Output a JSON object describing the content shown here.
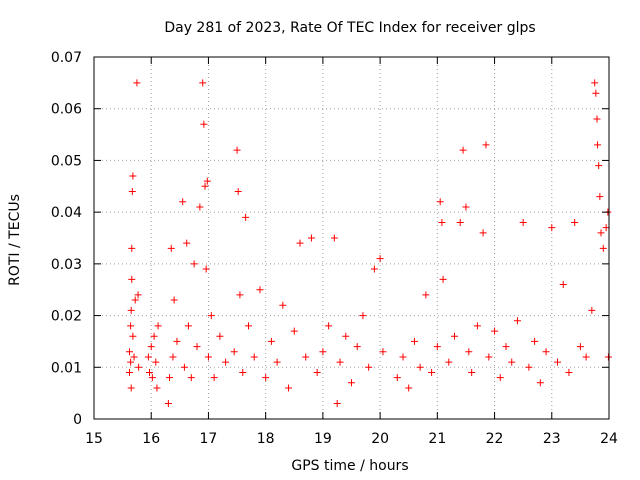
{
  "chart_data": {
    "type": "scatter",
    "title": "Day 281 of 2023, Rate Of TEC Index for receiver glps",
    "xlabel": "GPS time / hours",
    "ylabel": "ROTI / TECUs",
    "xlim": [
      15,
      24
    ],
    "ylim": [
      0,
      0.07
    ],
    "xticks": [
      15,
      16,
      17,
      18,
      19,
      20,
      21,
      22,
      23,
      24
    ],
    "xtick_labels": [
      "15",
      "16",
      "17",
      "18",
      "19",
      "20",
      "21",
      "22",
      "23",
      "24"
    ],
    "yticks": [
      0,
      0.01,
      0.02,
      0.03,
      0.04,
      0.05,
      0.06,
      0.07
    ],
    "ytick_labels": [
      "0",
      "0.01",
      "0.02",
      "0.03",
      "0.04",
      "0.05",
      "0.06",
      "0.07"
    ],
    "grid": true,
    "marker": "+",
    "marker_color": "#ff0000",
    "series": [
      {
        "name": "ROTI",
        "points": [
          [
            15.62,
            0.013
          ],
          [
            15.62,
            0.009
          ],
          [
            15.64,
            0.018
          ],
          [
            15.64,
            0.011
          ],
          [
            15.65,
            0.021
          ],
          [
            15.65,
            0.006
          ],
          [
            15.66,
            0.027
          ],
          [
            15.66,
            0.033
          ],
          [
            15.67,
            0.044
          ],
          [
            15.68,
            0.047
          ],
          [
            15.68,
            0.016
          ],
          [
            15.7,
            0.012
          ],
          [
            15.72,
            0.023
          ],
          [
            15.75,
            0.065
          ],
          [
            15.77,
            0.024
          ],
          [
            15.78,
            0.01
          ],
          [
            15.95,
            0.012
          ],
          [
            15.97,
            0.009
          ],
          [
            16.0,
            0.014
          ],
          [
            16.02,
            0.008
          ],
          [
            16.05,
            0.016
          ],
          [
            16.08,
            0.011
          ],
          [
            16.1,
            0.006
          ],
          [
            16.12,
            0.018
          ],
          [
            16.3,
            0.003
          ],
          [
            16.32,
            0.008
          ],
          [
            16.35,
            0.033
          ],
          [
            16.38,
            0.012
          ],
          [
            16.4,
            0.023
          ],
          [
            16.45,
            0.015
          ],
          [
            16.55,
            0.042
          ],
          [
            16.58,
            0.01
          ],
          [
            16.62,
            0.034
          ],
          [
            16.65,
            0.018
          ],
          [
            16.7,
            0.008
          ],
          [
            16.75,
            0.03
          ],
          [
            16.8,
            0.014
          ],
          [
            16.85,
            0.041
          ],
          [
            16.9,
            0.065
          ],
          [
            16.92,
            0.057
          ],
          [
            16.94,
            0.045
          ],
          [
            16.96,
            0.029
          ],
          [
            16.98,
            0.046
          ],
          [
            17.0,
            0.012
          ],
          [
            17.05,
            0.02
          ],
          [
            17.1,
            0.008
          ],
          [
            17.2,
            0.016
          ],
          [
            17.3,
            0.011
          ],
          [
            17.45,
            0.013
          ],
          [
            17.5,
            0.052
          ],
          [
            17.52,
            0.044
          ],
          [
            17.55,
            0.024
          ],
          [
            17.6,
            0.009
          ],
          [
            17.65,
            0.039
          ],
          [
            17.7,
            0.018
          ],
          [
            17.8,
            0.012
          ],
          [
            17.9,
            0.025
          ],
          [
            18.0,
            0.008
          ],
          [
            18.1,
            0.015
          ],
          [
            18.2,
            0.011
          ],
          [
            18.3,
            0.022
          ],
          [
            18.4,
            0.006
          ],
          [
            18.5,
            0.017
          ],
          [
            18.6,
            0.034
          ],
          [
            18.7,
            0.012
          ],
          [
            18.8,
            0.035
          ],
          [
            18.9,
            0.009
          ],
          [
            19.0,
            0.013
          ],
          [
            19.1,
            0.018
          ],
          [
            19.2,
            0.035
          ],
          [
            19.25,
            0.003
          ],
          [
            19.3,
            0.011
          ],
          [
            19.4,
            0.016
          ],
          [
            19.5,
            0.007
          ],
          [
            19.6,
            0.014
          ],
          [
            19.7,
            0.02
          ],
          [
            19.8,
            0.01
          ],
          [
            19.9,
            0.029
          ],
          [
            20.0,
            0.031
          ],
          [
            20.05,
            0.013
          ],
          [
            20.3,
            0.008
          ],
          [
            20.4,
            0.012
          ],
          [
            20.5,
            0.006
          ],
          [
            20.6,
            0.015
          ],
          [
            20.7,
            0.01
          ],
          [
            20.8,
            0.024
          ],
          [
            20.9,
            0.009
          ],
          [
            21.0,
            0.014
          ],
          [
            21.05,
            0.042
          ],
          [
            21.08,
            0.038
          ],
          [
            21.1,
            0.027
          ],
          [
            21.2,
            0.011
          ],
          [
            21.3,
            0.016
          ],
          [
            21.4,
            0.038
          ],
          [
            21.45,
            0.052
          ],
          [
            21.5,
            0.041
          ],
          [
            21.55,
            0.013
          ],
          [
            21.6,
            0.009
          ],
          [
            21.7,
            0.018
          ],
          [
            21.8,
            0.036
          ],
          [
            21.85,
            0.053
          ],
          [
            21.9,
            0.012
          ],
          [
            22.0,
            0.017
          ],
          [
            22.1,
            0.008
          ],
          [
            22.2,
            0.014
          ],
          [
            22.3,
            0.011
          ],
          [
            22.4,
            0.019
          ],
          [
            22.5,
            0.038
          ],
          [
            22.6,
            0.01
          ],
          [
            22.7,
            0.015
          ],
          [
            22.8,
            0.007
          ],
          [
            22.9,
            0.013
          ],
          [
            23.0,
            0.037
          ],
          [
            23.1,
            0.011
          ],
          [
            23.2,
            0.026
          ],
          [
            23.3,
            0.009
          ],
          [
            23.4,
            0.038
          ],
          [
            23.5,
            0.014
          ],
          [
            23.6,
            0.012
          ],
          [
            23.7,
            0.021
          ],
          [
            23.75,
            0.065
          ],
          [
            23.77,
            0.063
          ],
          [
            23.79,
            0.058
          ],
          [
            23.8,
            0.053
          ],
          [
            23.82,
            0.049
          ],
          [
            23.84,
            0.043
          ],
          [
            23.86,
            0.036
          ],
          [
            23.9,
            0.033
          ],
          [
            23.95,
            0.037
          ],
          [
            23.98,
            0.04
          ],
          [
            23.99,
            0.012
          ]
        ]
      }
    ]
  }
}
